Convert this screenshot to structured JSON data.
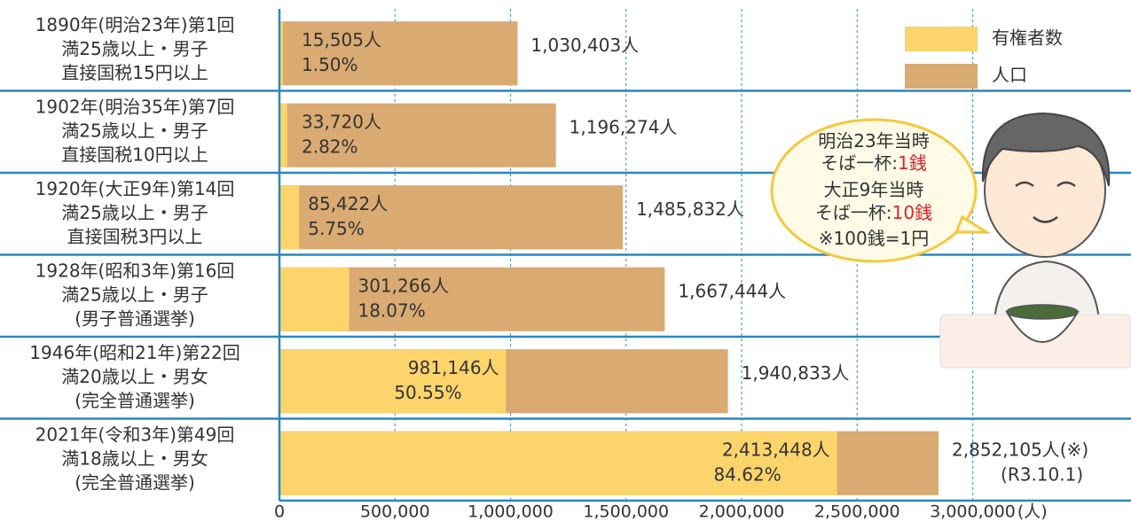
{
  "chart_data": {
    "type": "bar",
    "orientation": "horizontal",
    "categories": [
      [
        "1890年(明治23年)第1回",
        "満25歳以上・男子",
        "直接国税15円以上"
      ],
      [
        "1902年(明治35年)第7回",
        "満25歳以上・男子",
        "直接国税10円以上"
      ],
      [
        "1920年(大正9年)第14回",
        "満25歳以上・男子",
        "直接国税3円以上"
      ],
      [
        "1928年(昭和3年)第16回",
        "満25歳以上・男子",
        "(男子普通選挙)"
      ],
      [
        "1946年(昭和21年)第22回",
        "満20歳以上・男女",
        "(完全普通選挙)"
      ],
      [
        "2021年(令和3年)第49回",
        "満18歳以上・男女",
        "(完全普通選挙)"
      ]
    ],
    "series": [
      {
        "name": "有権者数",
        "color": "#fbd46b",
        "values": [
          15505,
          33720,
          85422,
          301266,
          981146,
          2413448
        ],
        "value_labels": [
          "15,505人",
          "33,720人",
          "85,422人",
          "301,266人",
          "981,146人",
          "2,413,448人"
        ],
        "share_labels": [
          "1.50%",
          "2.82%",
          "5.75%",
          "18.07%",
          "50.55%",
          "84.62%"
        ]
      },
      {
        "name": "人口",
        "color": "#d9aa72",
        "values": [
          1030403,
          1196274,
          1485832,
          1667444,
          1940833,
          2852105
        ],
        "value_labels": [
          "1,030,403人",
          "1,196,274人",
          "1,485,832人",
          "1,667,444人",
          "1,940,833人",
          "2,852,105人(※)"
        ]
      }
    ],
    "population_note": "(R3.10.1)",
    "x_label": "(人)",
    "xlim": [
      0,
      3685000
    ],
    "xticks": [
      0,
      {
        "value": 500000,
        "label": "500,000"
      },
      {
        "value": 1000000,
        "label": "1,000,000"
      },
      {
        "value": 1500000,
        "label": "1,500,000"
      },
      {
        "value": 2000000,
        "label": "2,000,000"
      },
      {
        "value": 2500000,
        "label": "2,500,000"
      },
      {
        "value": 3000000,
        "label": "3,000,000"
      }
    ],
    "grid": true,
    "legend": "upper right",
    "bubble": [
      {
        "text": "明治23年当時"
      },
      {
        "text": "そば一杯:",
        "highlight": "1銭"
      },
      {
        "text": "大正9年当時"
      },
      {
        "text": "そば一杯:",
        "highlight": "10銭"
      },
      {
        "text": "※100銭=1円"
      }
    ]
  }
}
